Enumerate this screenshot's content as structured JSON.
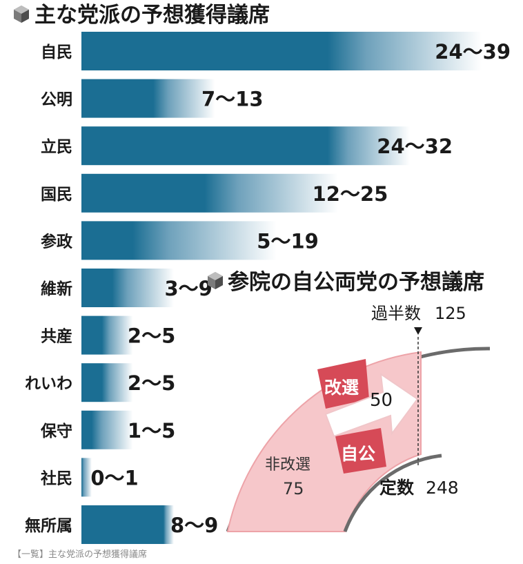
{
  "chart_data": [
    {
      "type": "bar",
      "title": "主な党派の予想獲得議席",
      "categories": [
        "自民",
        "公明",
        "立民",
        "国民",
        "参政",
        "維新",
        "共産",
        "れいわ",
        "保守",
        "社民",
        "無所属"
      ],
      "series": [
        {
          "values": [
            24,
            7,
            24,
            12,
            5,
            3,
            2,
            2,
            1,
            0,
            8
          ]
        },
        {
          "values": [
            39,
            13,
            32,
            25,
            19,
            9,
            5,
            5,
            5,
            1,
            9
          ]
        }
      ],
      "range_labels": [
        "24〜39",
        "7〜13",
        "24〜32",
        "12〜25",
        "5〜19",
        "3〜9",
        "2〜5",
        "2〜5",
        "1〜5",
        "0〜1",
        "8〜9"
      ],
      "xlim": [
        0,
        39
      ],
      "colors": {
        "bar": "#1b6e93",
        "fade": "#ffffff"
      }
    },
    {
      "type": "diagram",
      "title": "参院の自公両党の予想議席",
      "majority_label": "過半数",
      "majority_value": "125",
      "total_label": "定数",
      "total_value": "248",
      "non_reelection_label": "非改選",
      "non_reelection_value": "75",
      "reelection_label": "改選",
      "ruling_label": "自公",
      "arrow_value": "50",
      "colors": {
        "sector": "#f6c7ca",
        "sector_edge": "#eda3a8",
        "reelection": "#d64a57",
        "ruling": "#d64a57",
        "arc": "#666666"
      }
    }
  ],
  "caption": "【一覧】主な党派の予想獲得議席"
}
